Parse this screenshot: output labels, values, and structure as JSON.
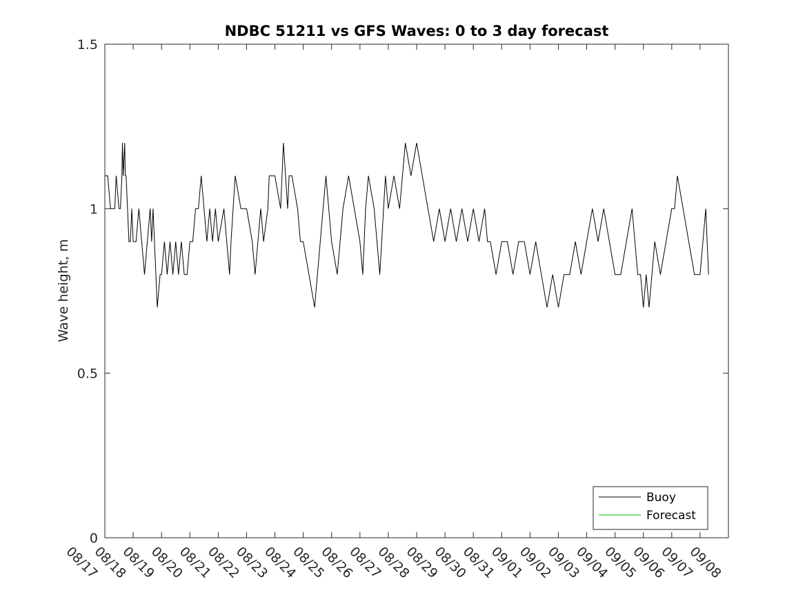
{
  "chart_data": {
    "type": "line",
    "title": "NDBC 51211 vs GFS Waves: 0 to 3 day forecast",
    "xlabel": "",
    "ylabel": "Wave height, m",
    "ylim": [
      0,
      1.5
    ],
    "yticks": [
      0,
      0.5,
      1,
      1.5
    ],
    "ytick_labels": [
      "0",
      "0.5",
      "1",
      "1.5"
    ],
    "xlim": [
      0,
      22
    ],
    "xtick_labels": [
      "08/17",
      "08/18",
      "08/19",
      "08/20",
      "08/21",
      "08/22",
      "08/23",
      "08/24",
      "08/25",
      "08/26",
      "08/27",
      "08/28",
      "08/29",
      "08/30",
      "08/31",
      "09/01",
      "09/02",
      "09/03",
      "09/04",
      "09/05",
      "09/06",
      "09/07",
      "09/08"
    ],
    "legend": {
      "location": "bottom-right",
      "entries": [
        "Buoy",
        "Forecast"
      ]
    },
    "series": [
      {
        "name": "Buoy",
        "color": "#000000",
        "x": [
          0,
          0.1,
          0.2,
          0.35,
          0.4,
          0.5,
          0.55,
          0.6,
          0.62,
          0.65,
          0.7,
          0.72,
          0.75,
          0.8,
          0.85,
          0.9,
          0.95,
          1.0,
          1.1,
          1.2,
          1.3,
          1.4,
          1.5,
          1.6,
          1.65,
          1.7,
          1.75,
          1.8,
          1.85,
          1.95,
          2.0,
          2.1,
          2.2,
          2.3,
          2.4,
          2.5,
          2.6,
          2.7,
          2.8,
          2.9,
          3.0,
          3.1,
          3.2,
          3.3,
          3.4,
          3.5,
          3.6,
          3.7,
          3.8,
          3.9,
          4.0,
          4.2,
          4.4,
          4.45,
          4.6,
          4.8,
          5.0,
          5.2,
          5.3,
          5.5,
          5.6,
          5.75,
          5.8,
          6.0,
          6.2,
          6.3,
          6.45,
          6.5,
          6.6,
          6.8,
          6.9,
          7.0,
          7.2,
          7.4,
          7.6,
          7.8,
          8.0,
          8.2,
          8.4,
          8.6,
          8.8,
          9.0,
          9.1,
          9.15,
          9.2,
          9.3,
          9.5,
          9.7,
          9.9,
          10.0,
          10.2,
          10.4,
          10.6,
          10.8,
          11.0,
          11.2,
          11.4,
          11.6,
          11.8,
          12.0,
          12.2,
          12.4,
          12.6,
          12.8,
          13.0,
          13.2,
          13.4,
          13.5,
          13.6,
          13.8,
          14.0,
          14.2,
          14.4,
          14.6,
          14.8,
          15.0,
          15.2,
          15.4,
          15.6,
          15.8,
          16.0,
          16.2,
          16.4,
          16.6,
          16.8,
          17.0,
          17.2,
          17.4,
          17.6,
          17.8,
          18.0,
          18.2,
          18.4,
          18.6,
          18.8,
          18.9,
          19.0,
          19.1,
          19.2,
          19.3,
          19.4,
          19.6,
          19.8,
          20.0,
          20.1,
          20.2,
          20.4,
          20.6,
          20.8,
          21.0,
          21.2,
          21.3
        ],
        "values": [
          1.1,
          1.1,
          1.0,
          1.0,
          1.1,
          1.0,
          1.0,
          1.1,
          1.2,
          1.1,
          1.2,
          1.1,
          1.1,
          1.0,
          0.9,
          0.9,
          1.0,
          0.9,
          0.9,
          1.0,
          0.9,
          0.8,
          0.9,
          1.0,
          0.9,
          1.0,
          0.9,
          0.8,
          0.7,
          0.8,
          0.8,
          0.9,
          0.8,
          0.9,
          0.8,
          0.9,
          0.8,
          0.9,
          0.8,
          0.8,
          0.9,
          0.9,
          1.0,
          1.0,
          1.1,
          1.0,
          0.9,
          1.0,
          0.9,
          1.0,
          0.9,
          1.0,
          0.8,
          0.9,
          1.1,
          1.0,
          1.0,
          0.9,
          0.8,
          1.0,
          0.9,
          1.0,
          1.1,
          1.1,
          1.0,
          1.2,
          1.0,
          1.1,
          1.1,
          1.0,
          0.9,
          0.9,
          0.8,
          0.7,
          0.9,
          1.1,
          0.9,
          0.8,
          1.0,
          1.1,
          1.0,
          0.9,
          0.8,
          0.9,
          1.0,
          1.1,
          1.0,
          0.8,
          1.1,
          1.0,
          1.1,
          1.0,
          1.2,
          1.1,
          1.2,
          1.1,
          1.0,
          0.9,
          1.0,
          0.9,
          1.0,
          0.9,
          1.0,
          0.9,
          1.0,
          0.9,
          1.0,
          0.9,
          0.9,
          0.8,
          0.9,
          0.9,
          0.8,
          0.9,
          0.9,
          0.8,
          0.9,
          0.8,
          0.7,
          0.8,
          0.7,
          0.8,
          0.8,
          0.9,
          0.8,
          0.9,
          1.0,
          0.9,
          1.0,
          0.9,
          0.8,
          0.8,
          0.9,
          1.0,
          0.8,
          0.8,
          0.7,
          0.8,
          0.7,
          0.8,
          0.9,
          0.8,
          0.9,
          1.0,
          1.0,
          1.1,
          1.0,
          0.9,
          0.8,
          0.8,
          1.0,
          0.8
        ]
      },
      {
        "name": "Forecast",
        "color": "#00c000",
        "x": [],
        "values": []
      }
    ]
  }
}
